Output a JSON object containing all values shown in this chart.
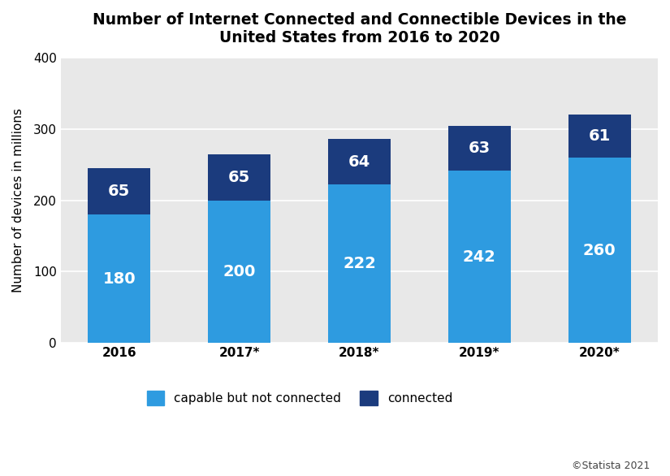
{
  "title": "Number of Internet Connected and Connectible Devices in the\nUnited States from 2016 to 2020",
  "categories": [
    "2016",
    "2017*",
    "2018*",
    "2019*",
    "2020*"
  ],
  "capable_not_connected": [
    180,
    200,
    222,
    242,
    260
  ],
  "connected": [
    65,
    65,
    64,
    63,
    61
  ],
  "color_capable": "#2E9BE0",
  "color_connected": "#1B3B7D",
  "ylabel": "Number of devices in millions",
  "ylim": [
    0,
    400
  ],
  "yticks": [
    0,
    100,
    200,
    300,
    400
  ],
  "fig_bg_color": "#FFFFFF",
  "plot_bg_color": "#E8E8E8",
  "title_fontsize": 13.5,
  "label_fontsize": 11,
  "tick_fontsize": 11,
  "bar_label_fontsize": 14,
  "legend_fontsize": 11,
  "watermark": "©Statista 2021",
  "bar_width": 0.52
}
